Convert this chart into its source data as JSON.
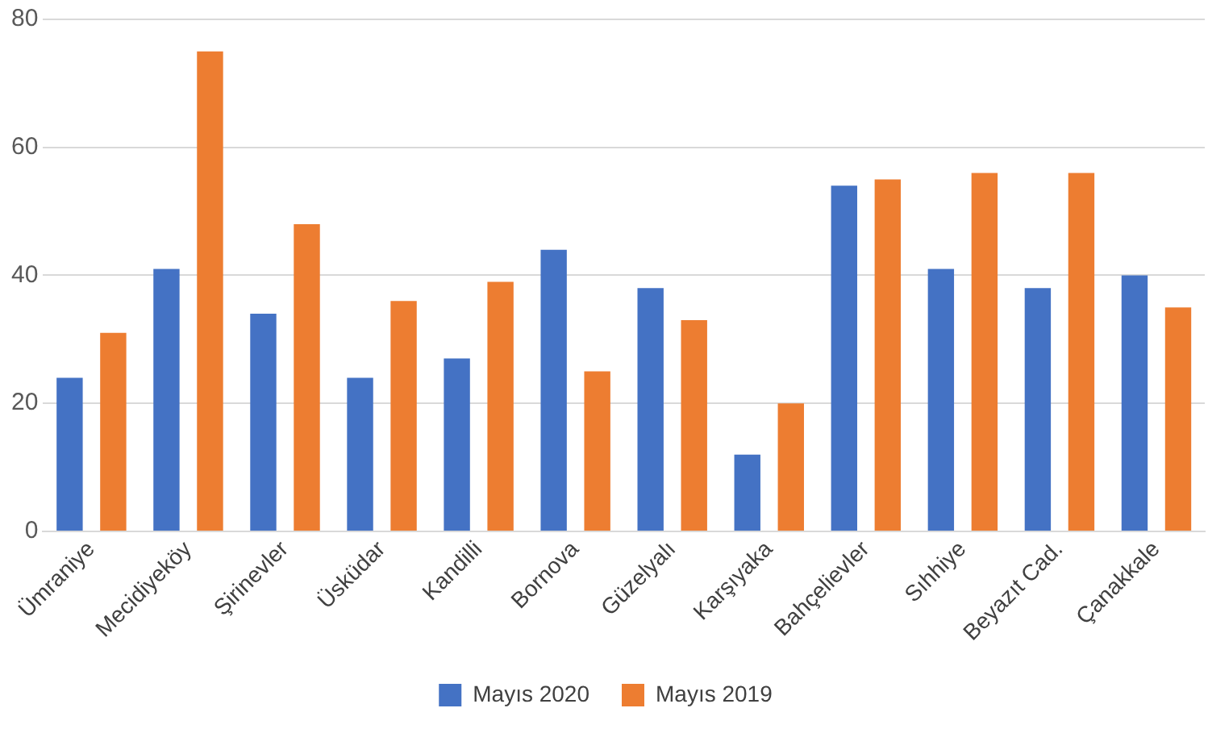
{
  "chart_data": {
    "type": "bar",
    "categories": [
      "Ümraniye",
      "Mecidiyeköy",
      "Şirinevler",
      "Üsküdar",
      "Kandilli",
      "Bornova",
      "Güzelyalı",
      "Karşıyaka",
      "Bahçelievler",
      "Sıhhiye",
      "Beyazıt Cad.",
      "Çanakkale"
    ],
    "series": [
      {
        "name": "Mayıs 2020",
        "color": "#4472c4",
        "values": [
          24,
          41,
          34,
          24,
          27,
          44,
          38,
          12,
          54,
          41,
          38,
          40
        ]
      },
      {
        "name": "Mayıs 2019",
        "color": "#ed7d31",
        "values": [
          31,
          75,
          48,
          36,
          39,
          25,
          33,
          20,
          55,
          56,
          56,
          35
        ]
      }
    ],
    "ylim": [
      0,
      80
    ],
    "yticks": [
      0,
      20,
      40,
      60,
      80
    ],
    "grid": "y",
    "legend": "bottom"
  }
}
